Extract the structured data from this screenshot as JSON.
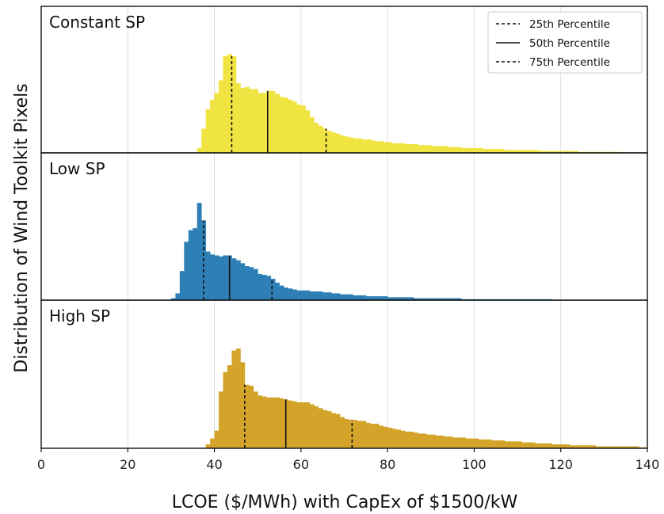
{
  "chart_data": {
    "type": "bar",
    "chart_kind": "stacked histograms",
    "xlabel": "LCOE ($/MWh) with CapEx of $1500/kW",
    "ylabel": "Distribution of Wind Toolkit Pixels",
    "xlim": [
      0,
      140
    ],
    "xticks": [
      0,
      20,
      40,
      60,
      80,
      100,
      120,
      140
    ],
    "grid": "vertical lines at x ticks",
    "legend": {
      "placement": "top-right",
      "entries": [
        {
          "label": "25th Percentile",
          "style": "dashed"
        },
        {
          "label": "50th Percentile",
          "style": "solid"
        },
        {
          "label": "75th Percentile",
          "style": "dashed"
        }
      ]
    },
    "bin_width": 1,
    "panels": [
      {
        "name": "Constant SP",
        "color": "#f0e442",
        "x": [
          36,
          37,
          38,
          39,
          40,
          41,
          42,
          43,
          44,
          45,
          46,
          47,
          48,
          49,
          50,
          51,
          52,
          53,
          54,
          55,
          56,
          57,
          58,
          59,
          60,
          61,
          62,
          63,
          64,
          65,
          66,
          67,
          68,
          69,
          70,
          71,
          72,
          73,
          74,
          75,
          76,
          77,
          78,
          79,
          80,
          81,
          82,
          83,
          84,
          85,
          86,
          87,
          88,
          89,
          90,
          91,
          92,
          93,
          94,
          95,
          96,
          97,
          98,
          99,
          100,
          101,
          102,
          103,
          104,
          105,
          106,
          107,
          108,
          109,
          110,
          111,
          112,
          113,
          114,
          115,
          116,
          117,
          118,
          119,
          120,
          121,
          122,
          123,
          124,
          125,
          126,
          127,
          128,
          129,
          130,
          131,
          132,
          133
        ],
        "values": [
          5,
          25,
          45,
          55,
          62,
          75,
          100,
          102,
          100,
          72,
          67,
          68,
          66,
          66,
          62,
          62,
          64,
          64,
          61,
          58,
          57,
          55,
          53,
          50,
          49,
          44,
          37,
          31,
          28,
          25,
          23,
          21,
          20,
          18,
          17,
          16,
          15,
          15,
          14,
          14,
          13,
          12,
          12,
          11,
          11,
          10,
          10,
          10,
          9,
          9,
          9,
          8,
          8,
          8,
          7,
          7,
          7,
          7,
          6,
          6,
          6,
          5,
          5,
          5,
          5,
          5,
          4,
          4,
          4,
          4,
          4,
          3,
          3,
          3,
          3,
          3,
          3,
          3,
          3,
          2,
          2,
          2,
          2,
          2,
          2,
          2,
          2,
          2,
          1,
          1,
          1,
          1,
          1,
          1,
          1,
          1,
          1,
          1
        ],
        "percentiles": {
          "p25": 44,
          "p50": 52.3,
          "p75": 65.8
        }
      },
      {
        "name": "Low SP",
        "color": "#2e7fb5",
        "x": [
          30,
          31,
          32,
          33,
          34,
          35,
          36,
          37,
          38,
          39,
          40,
          41,
          42,
          43,
          44,
          45,
          46,
          47,
          48,
          49,
          50,
          51,
          52,
          53,
          54,
          55,
          56,
          57,
          58,
          59,
          60,
          61,
          62,
          63,
          64,
          65,
          66,
          67,
          68,
          69,
          70,
          71,
          72,
          73,
          74,
          75,
          76,
          77,
          78,
          79,
          80,
          81,
          82,
          83,
          84,
          85,
          86,
          87,
          88,
          89,
          90,
          91,
          92,
          93,
          94,
          95,
          96,
          97,
          98,
          99,
          100,
          101,
          102,
          103,
          104,
          105,
          106,
          107,
          108,
          109,
          110,
          111,
          112,
          113,
          114,
          115,
          116,
          117
        ],
        "values": [
          2,
          7,
          30,
          60,
          72,
          74,
          100,
          82,
          50,
          47,
          46,
          45,
          46,
          46,
          43,
          41,
          38,
          35,
          34,
          32,
          27,
          26,
          25,
          22,
          18,
          15,
          13,
          12,
          11,
          10,
          10,
          10,
          9,
          9,
          9,
          8,
          8,
          7,
          7,
          6,
          6,
          6,
          5,
          5,
          5,
          4,
          4,
          4,
          4,
          4,
          3,
          3,
          3,
          3,
          3,
          3,
          2,
          2,
          2,
          2,
          2,
          2,
          2,
          2,
          2,
          2,
          2,
          1,
          1,
          1,
          1,
          1,
          1,
          1,
          1,
          1,
          1,
          1,
          1,
          1,
          1,
          1,
          1,
          1,
          1,
          1,
          1,
          1
        ],
        "percentiles": {
          "p25": 37.5,
          "p50": 43.5,
          "p75": 53.3
        }
      },
      {
        "name": "High SP",
        "color": "#d4a42a",
        "x": [
          38,
          39,
          40,
          41,
          42,
          43,
          44,
          45,
          46,
          47,
          48,
          49,
          50,
          51,
          52,
          53,
          54,
          55,
          56,
          57,
          58,
          59,
          60,
          61,
          62,
          63,
          64,
          65,
          66,
          67,
          68,
          69,
          70,
          71,
          72,
          73,
          74,
          75,
          76,
          77,
          78,
          79,
          80,
          81,
          82,
          83,
          84,
          85,
          86,
          87,
          88,
          89,
          90,
          91,
          92,
          93,
          94,
          95,
          96,
          97,
          98,
          99,
          100,
          101,
          102,
          103,
          104,
          105,
          106,
          107,
          108,
          109,
          110,
          111,
          112,
          113,
          114,
          115,
          116,
          117,
          118,
          119,
          120,
          121,
          122,
          123,
          124,
          125,
          126,
          127,
          128,
          129,
          130,
          131,
          132,
          133,
          134,
          135,
          136,
          137,
          138,
          139
        ],
        "values": [
          4,
          10,
          18,
          58,
          78,
          85,
          100,
          102,
          88,
          65,
          64,
          58,
          54,
          53,
          52,
          52,
          52,
          51,
          50,
          49,
          48,
          47,
          47,
          47,
          45,
          43,
          41,
          39,
          38,
          36,
          35,
          32,
          30,
          29,
          29,
          28,
          28,
          26,
          25,
          25,
          23,
          22,
          21,
          20,
          19,
          18,
          17,
          17,
          16,
          15,
          15,
          14,
          14,
          13,
          13,
          12,
          12,
          11,
          11,
          11,
          10,
          10,
          10,
          9,
          9,
          9,
          8,
          8,
          8,
          7,
          7,
          7,
          7,
          6,
          6,
          6,
          5,
          5,
          5,
          5,
          4,
          4,
          4,
          4,
          3,
          3,
          3,
          3,
          3,
          3,
          2,
          2,
          2,
          2,
          2,
          2,
          2,
          2,
          2,
          2,
          1,
          1
        ],
        "percentiles": {
          "p25": 47,
          "p50": 56.5,
          "p75": 71.8
        }
      }
    ]
  }
}
